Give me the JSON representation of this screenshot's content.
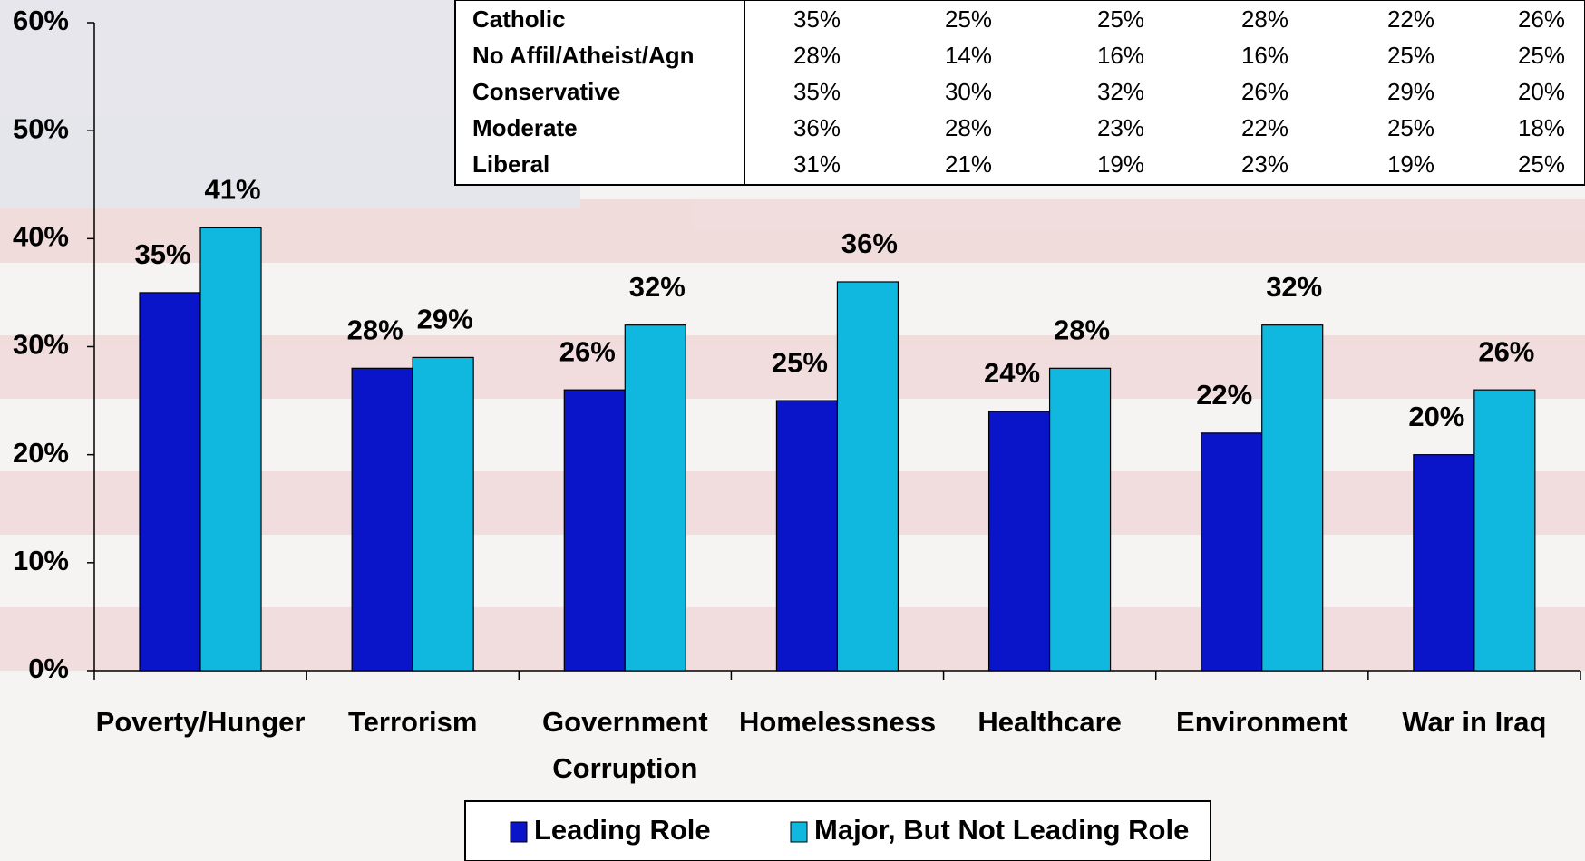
{
  "chart_data": {
    "type": "bar",
    "categories": [
      "Poverty/Hunger",
      "Terrorism",
      "Government Corruption",
      "Homelessness",
      "Healthcare",
      "Environment",
      "War in Iraq"
    ],
    "series": [
      {
        "name": "Leading Role",
        "color": "#0a14c8",
        "values": [
          35,
          28,
          26,
          25,
          24,
          22,
          20
        ],
        "value_labels": [
          "35%",
          "28%",
          "26%",
          "25%",
          "24%",
          "22%",
          "20%"
        ]
      },
      {
        "name": "Major, But Not Leading Role",
        "color": "#10b8e0",
        "values": [
          41,
          29,
          32,
          36,
          28,
          32,
          26
        ],
        "value_labels": [
          "41%",
          "29%",
          "32%",
          "36%",
          "28%",
          "32%",
          "26%"
        ]
      }
    ],
    "ylim": [
      0,
      60
    ],
    "yticks": [
      {
        "value": 0,
        "label": "0%"
      },
      {
        "value": 10,
        "label": "10%"
      },
      {
        "value": 20,
        "label": "20%"
      },
      {
        "value": 30,
        "label": "30%"
      },
      {
        "value": 40,
        "label": "40%"
      },
      {
        "value": 50,
        "label": "50%"
      },
      {
        "value": 60,
        "label": "60%"
      }
    ]
  },
  "table": {
    "rows": [
      {
        "label": "Catholic",
        "values": [
          "35%",
          "25%",
          "25%",
          "28%",
          "22%",
          "26%"
        ]
      },
      {
        "label": "No Affil/Atheist/Agn",
        "values": [
          "28%",
          "14%",
          "16%",
          "16%",
          "25%",
          "25%"
        ]
      },
      {
        "label": "Conservative",
        "values": [
          "35%",
          "30%",
          "32%",
          "26%",
          "29%",
          "20%"
        ]
      },
      {
        "label": "Moderate",
        "values": [
          "36%",
          "28%",
          "23%",
          "22%",
          "25%",
          "18%"
        ]
      },
      {
        "label": "Liberal",
        "values": [
          "31%",
          "21%",
          "19%",
          "23%",
          "19%",
          "25%"
        ]
      }
    ]
  }
}
